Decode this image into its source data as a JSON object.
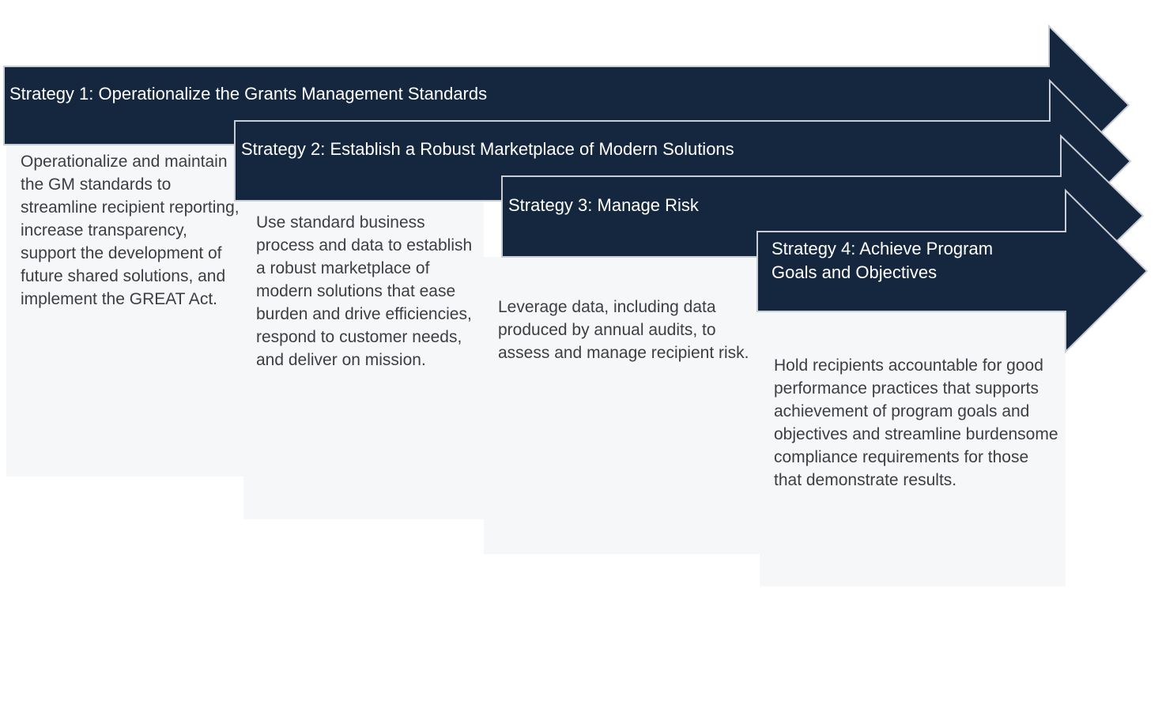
{
  "colors": {
    "banner": "#15273f",
    "banner_outline": "#c9ced6",
    "card_background": "#f6f7f8",
    "card_text": "#3b3e42",
    "title_text": "#ffffff"
  },
  "strategies": [
    {
      "title": "Strategy 1: Operationalize the Grants Management Standards",
      "description": "Operationalize and maintain the GM standards to streamline recipient reporting, increase transparency, support the development of future shared solutions, and implement the GREAT Act."
    },
    {
      "title": "Strategy 2: Establish a Robust Marketplace of Modern Solutions",
      "description": "Use standard business process and data to establish a robust marketplace of modern solutions that ease burden and drive efficiencies, respond to customer needs, and deliver on mission."
    },
    {
      "title": "Strategy 3: Manage Risk",
      "description": "Leverage data, including data produced by annual audits, to assess and manage recipient risk."
    },
    {
      "title_line1": "Strategy 4: Achieve Program",
      "title_line2": "Goals and Objectives",
      "description": "Hold recipients accountable for good performance practices that supports achievement of program goals and objectives and streamline burdensome compliance requirements for those that demonstrate results."
    }
  ]
}
